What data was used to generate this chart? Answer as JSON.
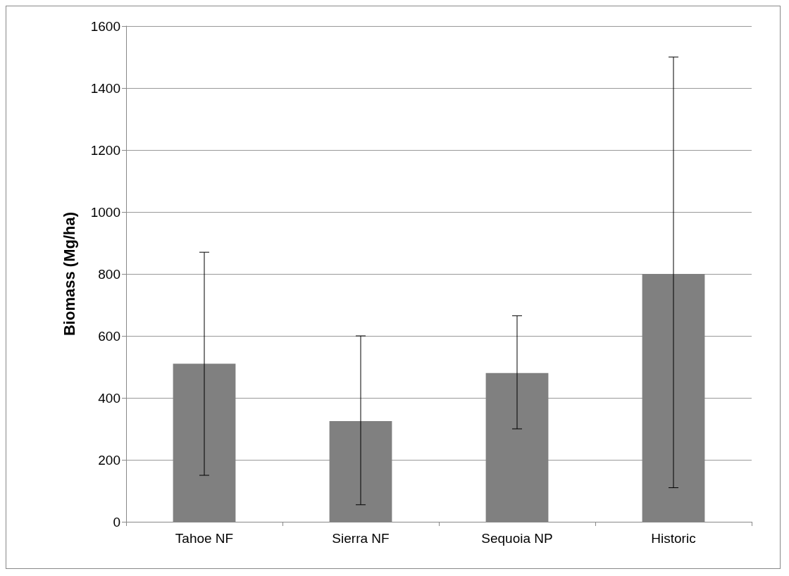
{
  "chart_data": {
    "type": "bar",
    "ylabel": "Biomass (Mg/ha)",
    "categories": [
      "Tahoe NF",
      "Sierra NF",
      "Sequoia NP",
      "Historic"
    ],
    "values": [
      510,
      325,
      480,
      800
    ],
    "errors": [
      [
        150,
        870
      ],
      [
        55,
        600
      ],
      [
        300,
        665
      ],
      [
        110,
        1500
      ]
    ],
    "color": "#808080",
    "ylim": [
      0,
      1600
    ],
    "yticks": [
      0,
      200,
      400,
      600,
      800,
      1000,
      1200,
      1400,
      1600
    ],
    "grid": "y"
  }
}
